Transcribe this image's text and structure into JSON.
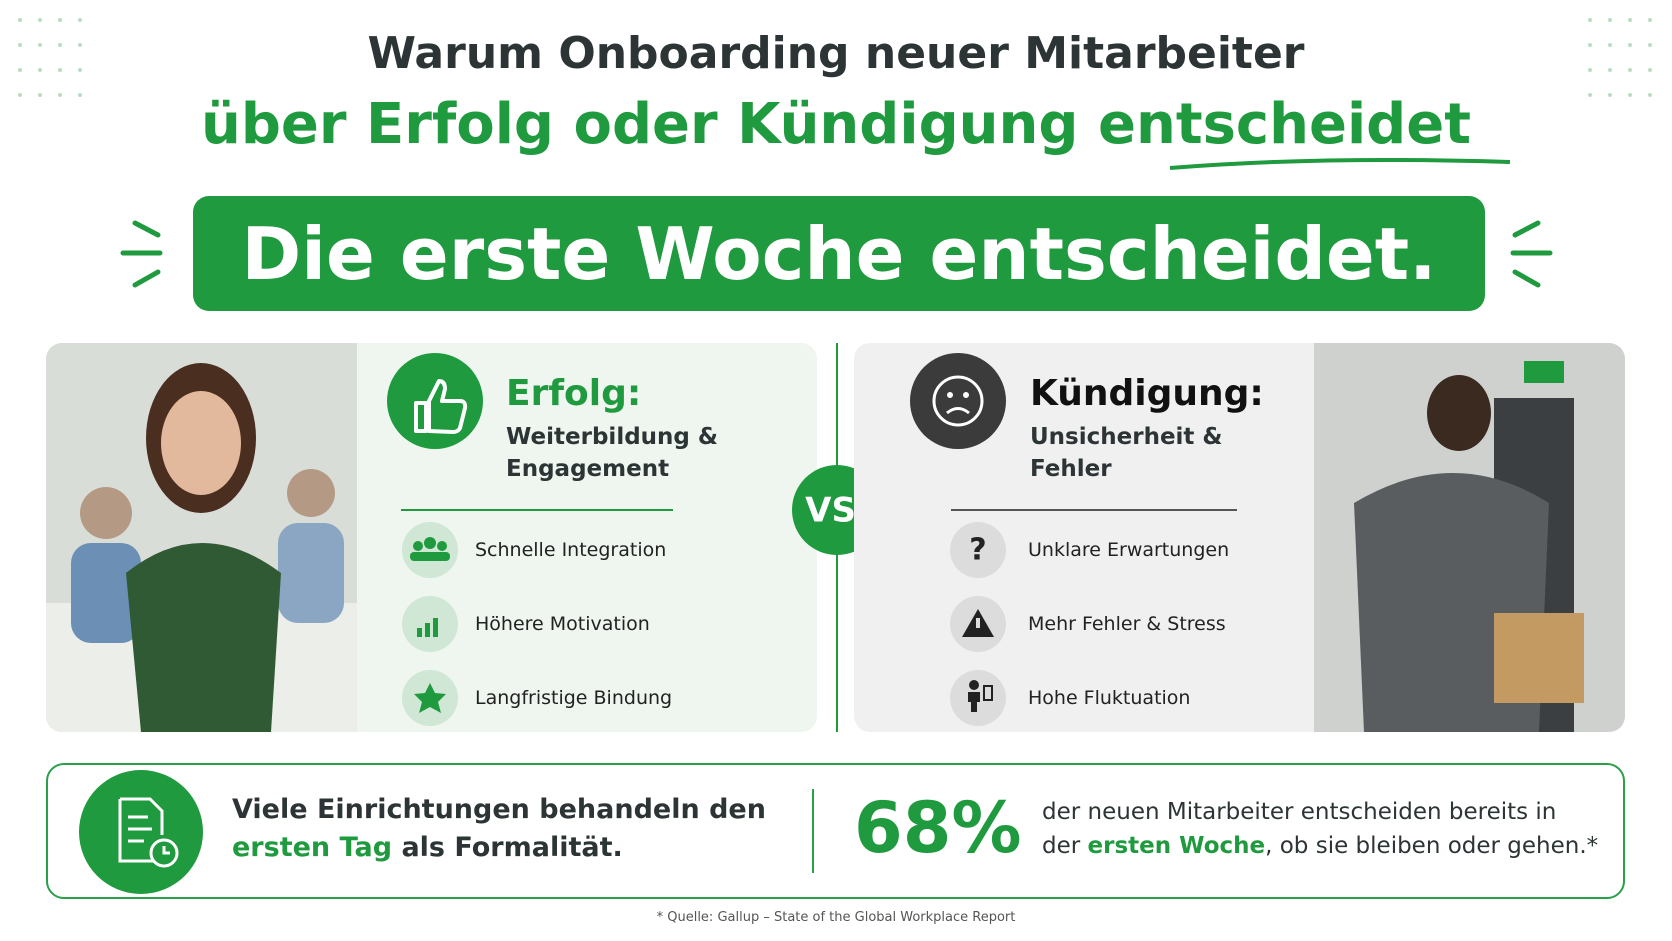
{
  "header": {
    "title_line1": "Warum Onboarding neuer Mitarbeiter",
    "title_line2": "über Erfolg oder Kündigung entscheidet",
    "banner": "Die erste Woche entscheidet."
  },
  "vs": "VS.",
  "success": {
    "title": "Erfolg:",
    "subtitle": "Weiterbildung & Engagement",
    "items": [
      "Schnelle Integration",
      "Höhere Motivation",
      "Langfristige Bindung"
    ]
  },
  "failure": {
    "title": "Kündigung:",
    "subtitle": "Unsicherheit & Fehler",
    "items": [
      "Unklare Erwartungen",
      "Mehr Fehler & Stress",
      "Hohe Fluktuation"
    ]
  },
  "footer": {
    "left_text": [
      "Viele Einrichtungen behandeln den",
      "ersten Tag",
      "als Formalität."
    ],
    "stat": "68%",
    "right_text": [
      "der neuen Mitarbeiter entscheiden bereits in",
      "der",
      "ersten Woche",
      ", ob sie bleiben oder gehen.*"
    ]
  },
  "source": "* Quelle: Gallup – State of the Global Workplace Report"
}
